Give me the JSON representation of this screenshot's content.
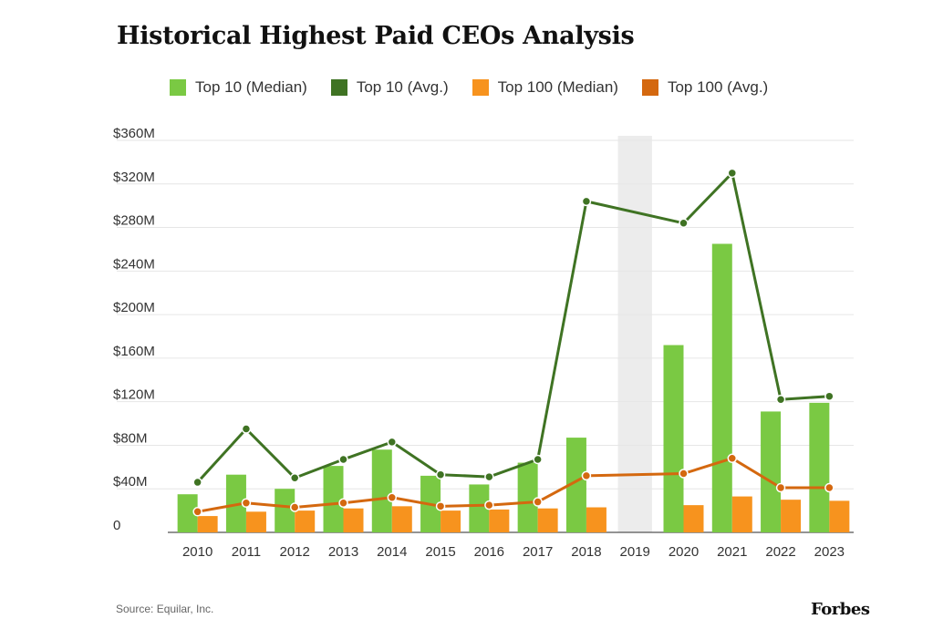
{
  "title": "Historical Highest Paid CEOs Analysis",
  "source": "Source:  Equilar, Inc.",
  "brand": "Forbes",
  "colors": {
    "top10_median": "#7ac943",
    "top10_avg": "#3f7323",
    "top100_median": "#f7931e",
    "top100_avg": "#d4680f",
    "highlight": "#ececec",
    "grid": "#e6e6e6",
    "axis": "#555555"
  },
  "chart_data": {
    "type": "bar",
    "categories": [
      "2010",
      "2011",
      "2012",
      "2013",
      "2014",
      "2015",
      "2016",
      "2017",
      "2018",
      "2019",
      "2020",
      "2021",
      "2022",
      "2023"
    ],
    "highlight_category": "2019",
    "y_ticks": [
      "0",
      "$40M",
      "$80M",
      "$120M",
      "$160M",
      "$200M",
      "$240M",
      "$280M",
      "$320M",
      "$360M"
    ],
    "ylim": [
      0,
      360
    ],
    "grid": true,
    "legend_position": "top",
    "series": [
      {
        "name": "Top 10 (Median)",
        "kind": "bar",
        "color": "#7ac943",
        "values": [
          35,
          53,
          40,
          61,
          76,
          52,
          44,
          64,
          87,
          null,
          172,
          265,
          111,
          119
        ]
      },
      {
        "name": "Top 100 (Median)",
        "kind": "bar",
        "color": "#f7931e",
        "values": [
          15,
          19,
          20,
          22,
          24,
          20,
          21,
          22,
          23,
          null,
          25,
          33,
          30,
          29
        ]
      },
      {
        "name": "Top 10 (Avg.)",
        "kind": "line",
        "color": "#3f7323",
        "values": [
          46,
          95,
          50,
          67,
          83,
          53,
          51,
          67,
          304,
          null,
          284,
          330,
          122,
          125
        ]
      },
      {
        "name": "Top 100 (Avg.)",
        "kind": "line",
        "color": "#d4680f",
        "values": [
          19,
          27,
          23,
          27,
          32,
          24,
          25,
          28,
          52,
          null,
          54,
          68,
          41,
          41
        ]
      }
    ],
    "legend_order": [
      "Top 10 (Median)",
      "Top 10 (Avg.)",
      "Top 100 (Median)",
      "Top 100 (Avg.)"
    ]
  }
}
